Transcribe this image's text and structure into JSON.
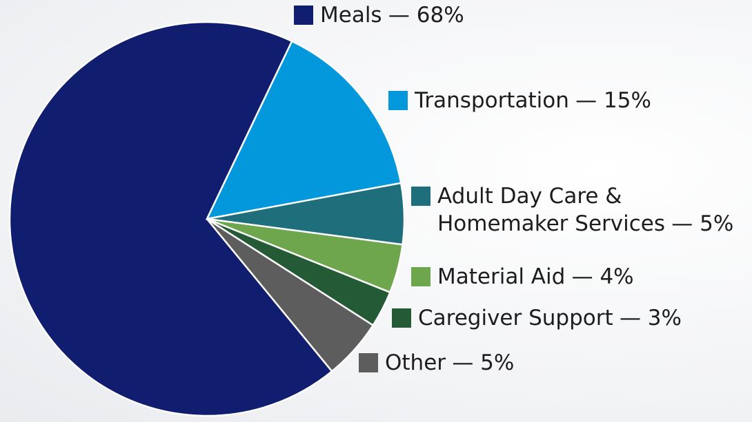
{
  "chart_data": {
    "type": "pie",
    "categories": [
      "Meals",
      "Transportation",
      "Adult Day Care & Homemaker Services",
      "Material Aid",
      "Caregiver Support",
      "Other"
    ],
    "values": [
      68,
      15,
      5,
      4,
      3,
      5
    ],
    "value_labels": [
      "— 68%",
      "— 15%",
      "— 5%",
      "— 4%",
      "— 3%",
      "— 5%"
    ],
    "colors": [
      "#111d6e",
      "#0398dc",
      "#1e6f7b",
      "#6da64c",
      "#245a35",
      "#5d5d5d"
    ]
  }
}
